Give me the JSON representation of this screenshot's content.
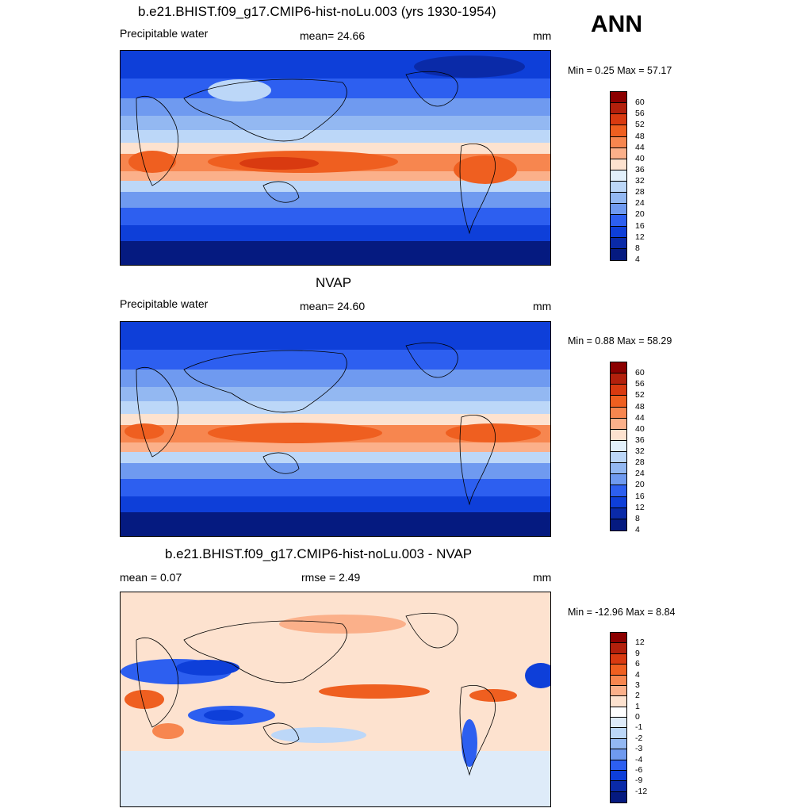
{
  "ann_label": "ANN",
  "panels": [
    {
      "title": "b.e21.BHIST.f09_g17.CMIP6-hist-noLu.003 (yrs 1930-1954)",
      "left_label": "Precipitable water",
      "center_label": "mean=  24.66",
      "units": "mm",
      "minmax": "Min =   0.25 Max =  57.17",
      "colorbar": {
        "colors": [
          "#8b0000",
          "#b3200c",
          "#d93a10",
          "#ef5f20",
          "#f7864f",
          "#fbb08a",
          "#fde2cf",
          "#e2f0fb",
          "#bcd7f8",
          "#93b8f2",
          "#6f9af0",
          "#2d5ff0",
          "#0e3fd9",
          "#0a2aa8",
          "#051a80"
        ],
        "labels": [
          "60",
          "56",
          "52",
          "48",
          "44",
          "40",
          "36",
          "32",
          "28",
          "24",
          "20",
          "16",
          "12",
          "8",
          "4"
        ]
      }
    },
    {
      "title": "NVAP",
      "left_label": "Precipitable water",
      "center_label": "mean=  24.60",
      "units": "mm",
      "minmax": "Min =   0.88 Max =  58.29",
      "colorbar": {
        "colors": [
          "#8b0000",
          "#b3200c",
          "#d93a10",
          "#ef5f20",
          "#f7864f",
          "#fbb08a",
          "#fde2cf",
          "#e2f0fb",
          "#bcd7f8",
          "#93b8f2",
          "#6f9af0",
          "#2d5ff0",
          "#0e3fd9",
          "#0a2aa8",
          "#051a80"
        ],
        "labels": [
          "60",
          "56",
          "52",
          "48",
          "44",
          "40",
          "36",
          "32",
          "28",
          "24",
          "20",
          "16",
          "12",
          "8",
          "4"
        ]
      }
    },
    {
      "title": "b.e21.BHIST.f09_g17.CMIP6-hist-noLu.003 - NVAP",
      "left_label": "mean =   0.07",
      "center_label": "rmse =   2.49",
      "units": "mm",
      "minmax": "Min = -12.96 Max =   8.84",
      "colorbar": {
        "colors": [
          "#8b0000",
          "#b3200c",
          "#d93a10",
          "#ef5f20",
          "#f7864f",
          "#fbb08a",
          "#fde2cf",
          "#ffffff",
          "#deebf9",
          "#bcd7f8",
          "#93b8f2",
          "#6f9af0",
          "#2d5ff0",
          "#0e3fd9",
          "#0a2aa8",
          "#051a80"
        ],
        "labels": [
          "12",
          "9",
          "6",
          "4",
          "3",
          "2",
          "1",
          "0",
          "-1",
          "-2",
          "-3",
          "-4",
          "-6",
          "-9",
          "-12"
        ]
      }
    }
  ]
}
